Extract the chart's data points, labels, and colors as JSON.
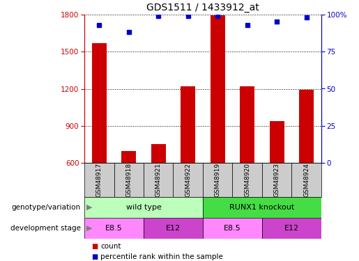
{
  "title": "GDS1511 / 1433912_at",
  "samples": [
    "GSM48917",
    "GSM48918",
    "GSM48921",
    "GSM48922",
    "GSM48919",
    "GSM48920",
    "GSM48923",
    "GSM48924"
  ],
  "counts": [
    1570,
    700,
    755,
    1220,
    1790,
    1220,
    940,
    1190
  ],
  "percentiles": [
    93,
    88,
    99,
    99,
    99,
    93,
    95,
    98
  ],
  "ylim_left": [
    600,
    1800
  ],
  "ylim_right": [
    0,
    100
  ],
  "yticks_left": [
    600,
    900,
    1200,
    1500,
    1800
  ],
  "yticks_right": [
    0,
    25,
    50,
    75,
    100
  ],
  "bar_color": "#cc0000",
  "dot_color": "#0000cc",
  "bar_baseline": 600,
  "genotype_groups": [
    {
      "label": "wild type",
      "start": 0,
      "end": 4,
      "color": "#bbffbb"
    },
    {
      "label": "RUNX1 knockout",
      "start": 4,
      "end": 8,
      "color": "#44dd44"
    }
  ],
  "dev_stage_groups": [
    {
      "label": "E8.5",
      "start": 0,
      "end": 2,
      "color": "#ff88ff"
    },
    {
      "label": "E12",
      "start": 2,
      "end": 4,
      "color": "#cc44cc"
    },
    {
      "label": "E8.5",
      "start": 4,
      "end": 6,
      "color": "#ff88ff"
    },
    {
      "label": "E12",
      "start": 6,
      "end": 8,
      "color": "#cc44cc"
    }
  ],
  "legend_count_color": "#cc0000",
  "legend_pct_color": "#0000cc",
  "left_tick_color": "#cc0000",
  "right_tick_color": "#0000cc",
  "sample_box_color": "#cccccc",
  "right_tick_labels": [
    "0",
    "25",
    "50",
    "75",
    "100%"
  ]
}
